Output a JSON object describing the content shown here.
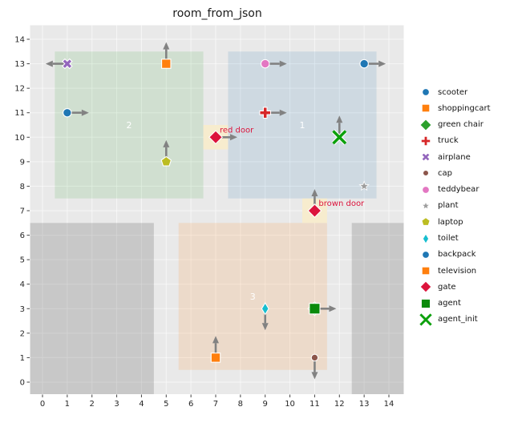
{
  "chart_data": {
    "type": "scatter",
    "title": "room_from_json",
    "xlabel": "",
    "ylabel": "",
    "xlim": [
      -0.5,
      14.6
    ],
    "ylim": [
      -0.5,
      14.55
    ],
    "grid": true,
    "legend_position": "right-outside",
    "xticks": [
      0,
      1,
      2,
      3,
      4,
      5,
      6,
      7,
      8,
      9,
      10,
      11,
      12,
      13,
      14
    ],
    "yticks": [
      0,
      1,
      2,
      3,
      4,
      5,
      6,
      7,
      8,
      9,
      10,
      11,
      12,
      13,
      14
    ],
    "rooms": [
      {
        "id": "1",
        "x0": 7.5,
        "x1": 13.5,
        "y0": 7.5,
        "y1": 13.5,
        "label": "1",
        "label_x": 10.5,
        "label_y": 10.5,
        "fill": "rgba(31,119,180,0.13)"
      },
      {
        "id": "2",
        "x0": 0.5,
        "x1": 6.5,
        "y0": 7.5,
        "y1": 13.5,
        "label": "2",
        "label_x": 3.5,
        "label_y": 10.5,
        "fill": "rgba(44,160,44,0.13)"
      },
      {
        "id": "3",
        "x0": 5.5,
        "x1": 11.5,
        "y0": 0.5,
        "y1": 6.5,
        "label": "3",
        "label_x": 8.5,
        "label_y": 3.5,
        "fill": "rgba(255,127,14,0.14)"
      }
    ],
    "blocked_areas": [
      {
        "x0": -0.5,
        "x1": 4.5,
        "y0": -0.5,
        "y1": 6.5
      },
      {
        "x0": 12.5,
        "x1": 14.6,
        "y0": -0.5,
        "y1": 6.5
      }
    ],
    "objects": [
      {
        "name": "scooter",
        "x": 1,
        "y": 11,
        "marker": "circle",
        "color": "#1f77b4",
        "arrow": "right"
      },
      {
        "name": "green chair",
        "x": 11,
        "y": 3,
        "marker": "diamond",
        "color": "#2ca02c",
        "arrow": null
      },
      {
        "name": "shoppingcart",
        "x": 5,
        "y": 13,
        "marker": "square",
        "color": "#ff7f0e",
        "arrow": "up"
      },
      {
        "name": "truck",
        "x": 9,
        "y": 11,
        "marker": "plus",
        "color": "#d62728",
        "arrow": "right"
      },
      {
        "name": "airplane",
        "x": 1,
        "y": 13,
        "marker": "x",
        "color": "#9467bd",
        "arrow": "left"
      },
      {
        "name": "cap",
        "x": 11,
        "y": 1,
        "marker": "circle_small",
        "color": "#8c564b",
        "arrow": "down"
      },
      {
        "name": "teddybear",
        "x": 9,
        "y": 13,
        "marker": "circle",
        "color": "#e377c2",
        "arrow": "right"
      },
      {
        "name": "plant",
        "x": 13,
        "y": 8,
        "marker": "star",
        "color": "#9e9e9e",
        "arrow": null
      },
      {
        "name": "laptop",
        "x": 5,
        "y": 9,
        "marker": "pentagon",
        "color": "#bcbd22",
        "arrow": "up"
      },
      {
        "name": "toilet",
        "x": 9,
        "y": 3,
        "marker": "thin_diamond",
        "color": "#17becf",
        "arrow": "down"
      },
      {
        "name": "backpack",
        "x": 13,
        "y": 13,
        "marker": "circle",
        "color": "#1f77b4",
        "arrow": "right"
      },
      {
        "name": "television",
        "x": 7,
        "y": 1,
        "marker": "square",
        "color": "#ff7f0e",
        "arrow": "up"
      },
      {
        "name": "gate red door",
        "x": 7,
        "y": 10,
        "marker": "diamond_large",
        "color": "#dc143c",
        "arrow": "right",
        "door_label": "red door",
        "door_patch": true
      },
      {
        "name": "gate brown door",
        "x": 11,
        "y": 7,
        "marker": "diamond_large",
        "color": "#dc143c",
        "arrow": "up",
        "door_label": "brown door",
        "door_patch": true
      },
      {
        "name": "agent",
        "x": 11,
        "y": 3,
        "marker": "square_large",
        "color": "#0b8a0b",
        "arrow": "right"
      },
      {
        "name": "agent_init",
        "x": 12,
        "y": 10,
        "marker": "X",
        "color": "#0ca00c",
        "arrow": "up"
      }
    ],
    "legend": [
      {
        "label": "scooter",
        "marker": "circle",
        "color": "#1f77b4"
      },
      {
        "label": "shoppingcart",
        "marker": "square",
        "color": "#ff7f0e"
      },
      {
        "label": "green chair",
        "marker": "diamond",
        "color": "#2ca02c"
      },
      {
        "label": "truck",
        "marker": "plus",
        "color": "#d62728"
      },
      {
        "label": "airplane",
        "marker": "x",
        "color": "#9467bd"
      },
      {
        "label": "cap",
        "marker": "circle_small",
        "color": "#8c564b"
      },
      {
        "label": "teddybear",
        "marker": "circle",
        "color": "#e377c2"
      },
      {
        "label": "plant",
        "marker": "star",
        "color": "#9e9e9e"
      },
      {
        "label": "laptop",
        "marker": "pentagon",
        "color": "#bcbd22"
      },
      {
        "label": "toilet",
        "marker": "thin_diamond",
        "color": "#17becf"
      },
      {
        "label": "backpack",
        "marker": "circle",
        "color": "#1f77b4"
      },
      {
        "label": "television",
        "marker": "square",
        "color": "#ff7f0e"
      },
      {
        "label": "gate",
        "marker": "diamond_large",
        "color": "#dc143c"
      },
      {
        "label": "agent",
        "marker": "square_large",
        "color": "#0b8a0b"
      },
      {
        "label": "agent_init",
        "marker": "X",
        "color": "#0ca00c"
      }
    ]
  },
  "colors": {
    "figure_bg": "#ffffff",
    "axes_bg": "#e9e9e9",
    "grid": "rgba(255,255,255,0.6)",
    "blocked_fill": "rgba(127,127,127,0.30)",
    "door_patch": "#f7ecce",
    "door_text": "#dc143c",
    "arrow": "#828282",
    "room_label": "#ffffff",
    "tick_text": "#262626",
    "title_text": "#1a1a1a"
  }
}
